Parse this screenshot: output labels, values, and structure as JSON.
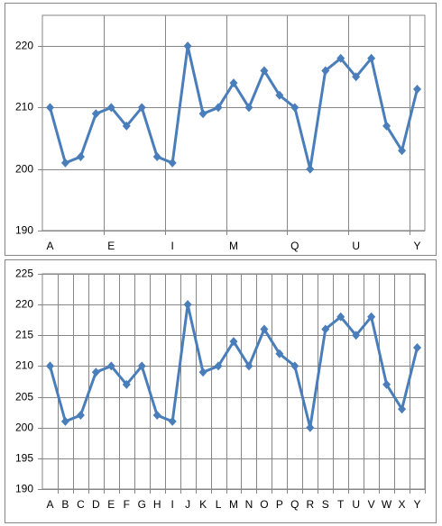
{
  "chart_data": [
    {
      "type": "line",
      "categories": [
        "A",
        null,
        null,
        null,
        "E",
        null,
        null,
        null,
        "I",
        null,
        null,
        null,
        "M",
        null,
        null,
        null,
        "Q",
        null,
        null,
        null,
        "U",
        null,
        null,
        null,
        "Y"
      ],
      "values": [
        210,
        201,
        202,
        209,
        210,
        207,
        210,
        202,
        201,
        220,
        209,
        210,
        214,
        210,
        216,
        212,
        210,
        200,
        216,
        218,
        215,
        218,
        207,
        203,
        213
      ],
      "color": "#4a7ebb",
      "ylim": [
        190,
        225
      ],
      "yticks": [
        190,
        200,
        210,
        220
      ],
      "grid": true,
      "xgrid_every": 4
    },
    {
      "type": "line",
      "categories": [
        "A",
        "B",
        "C",
        "D",
        "E",
        "F",
        "G",
        "H",
        "I",
        "J",
        "K",
        "L",
        "M",
        "N",
        "O",
        "P",
        "Q",
        "R",
        "S",
        "T",
        "U",
        "V",
        "W",
        "X",
        "Y"
      ],
      "values": [
        210,
        201,
        202,
        209,
        210,
        207,
        210,
        202,
        201,
        220,
        209,
        210,
        214,
        210,
        216,
        212,
        210,
        200,
        216,
        218,
        215,
        218,
        207,
        203,
        213
      ],
      "color": "#4a7ebb",
      "ylim": [
        190,
        225
      ],
      "yticks": [
        190,
        195,
        200,
        205,
        210,
        215,
        220,
        225
      ],
      "grid": true,
      "xgrid_every": 1
    }
  ]
}
